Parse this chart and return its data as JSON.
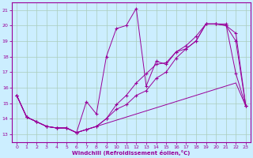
{
  "title": "",
  "xlabel": "Windchill (Refroidissement éolien,°C)",
  "bg_color": "#cceeff",
  "line_color": "#990099",
  "grid_color": "#aaccbb",
  "xlim": [
    -0.5,
    23.5
  ],
  "ylim": [
    12.5,
    21.5
  ],
  "yticks": [
    13,
    14,
    15,
    16,
    17,
    18,
    19,
    20,
    21
  ],
  "xticks": [
    0,
    1,
    2,
    3,
    4,
    5,
    6,
    7,
    8,
    9,
    10,
    11,
    12,
    13,
    14,
    15,
    16,
    17,
    18,
    19,
    20,
    21,
    22,
    23
  ],
  "series": [
    {
      "x": [
        0,
        1,
        2,
        3,
        4,
        5,
        6,
        7,
        8,
        9,
        10,
        11,
        12,
        13,
        14,
        15,
        16,
        17,
        18,
        19,
        20,
        21,
        22,
        23
      ],
      "y": [
        15.5,
        14.1,
        13.8,
        13.5,
        13.4,
        13.4,
        13.1,
        15.1,
        14.3,
        18.0,
        19.8,
        20.0,
        21.1,
        16.1,
        17.7,
        17.5,
        18.3,
        18.5,
        19.0,
        20.1,
        20.1,
        20.1,
        16.9,
        14.8
      ],
      "marker": "P",
      "linestyle": "-"
    },
    {
      "x": [
        0,
        1,
        2,
        3,
        4,
        5,
        6,
        7,
        8,
        9,
        10,
        11,
        12,
        13,
        14,
        15,
        16,
        17,
        18,
        19,
        20,
        21,
        22,
        23
      ],
      "y": [
        15.5,
        14.1,
        13.8,
        13.5,
        13.4,
        13.4,
        13.1,
        13.3,
        13.5,
        14.0,
        14.9,
        15.5,
        16.3,
        16.9,
        17.5,
        17.6,
        18.3,
        18.7,
        19.3,
        20.1,
        20.1,
        20.0,
        19.5,
        14.8
      ],
      "marker": "P",
      "linestyle": "-"
    },
    {
      "x": [
        0,
        1,
        2,
        3,
        4,
        5,
        6,
        7,
        8,
        9,
        10,
        11,
        12,
        13,
        14,
        15,
        16,
        17,
        18,
        19,
        20,
        21,
        22,
        23
      ],
      "y": [
        15.5,
        14.1,
        13.8,
        13.5,
        13.4,
        13.4,
        13.1,
        13.3,
        13.5,
        14.0,
        14.6,
        14.9,
        15.5,
        15.8,
        16.6,
        17.0,
        17.9,
        18.5,
        19.0,
        20.1,
        20.1,
        20.0,
        19.0,
        14.8
      ],
      "marker": "P",
      "linestyle": "-"
    },
    {
      "x": [
        0,
        1,
        2,
        3,
        4,
        5,
        6,
        7,
        8,
        9,
        10,
        11,
        12,
        13,
        14,
        15,
        16,
        17,
        18,
        19,
        20,
        21,
        22,
        23
      ],
      "y": [
        15.5,
        14.1,
        13.8,
        13.5,
        13.4,
        13.4,
        13.1,
        13.3,
        13.5,
        13.7,
        13.9,
        14.1,
        14.3,
        14.5,
        14.7,
        14.9,
        15.1,
        15.3,
        15.5,
        15.7,
        15.9,
        16.1,
        16.3,
        14.8
      ],
      "marker": null,
      "linestyle": "-"
    }
  ]
}
